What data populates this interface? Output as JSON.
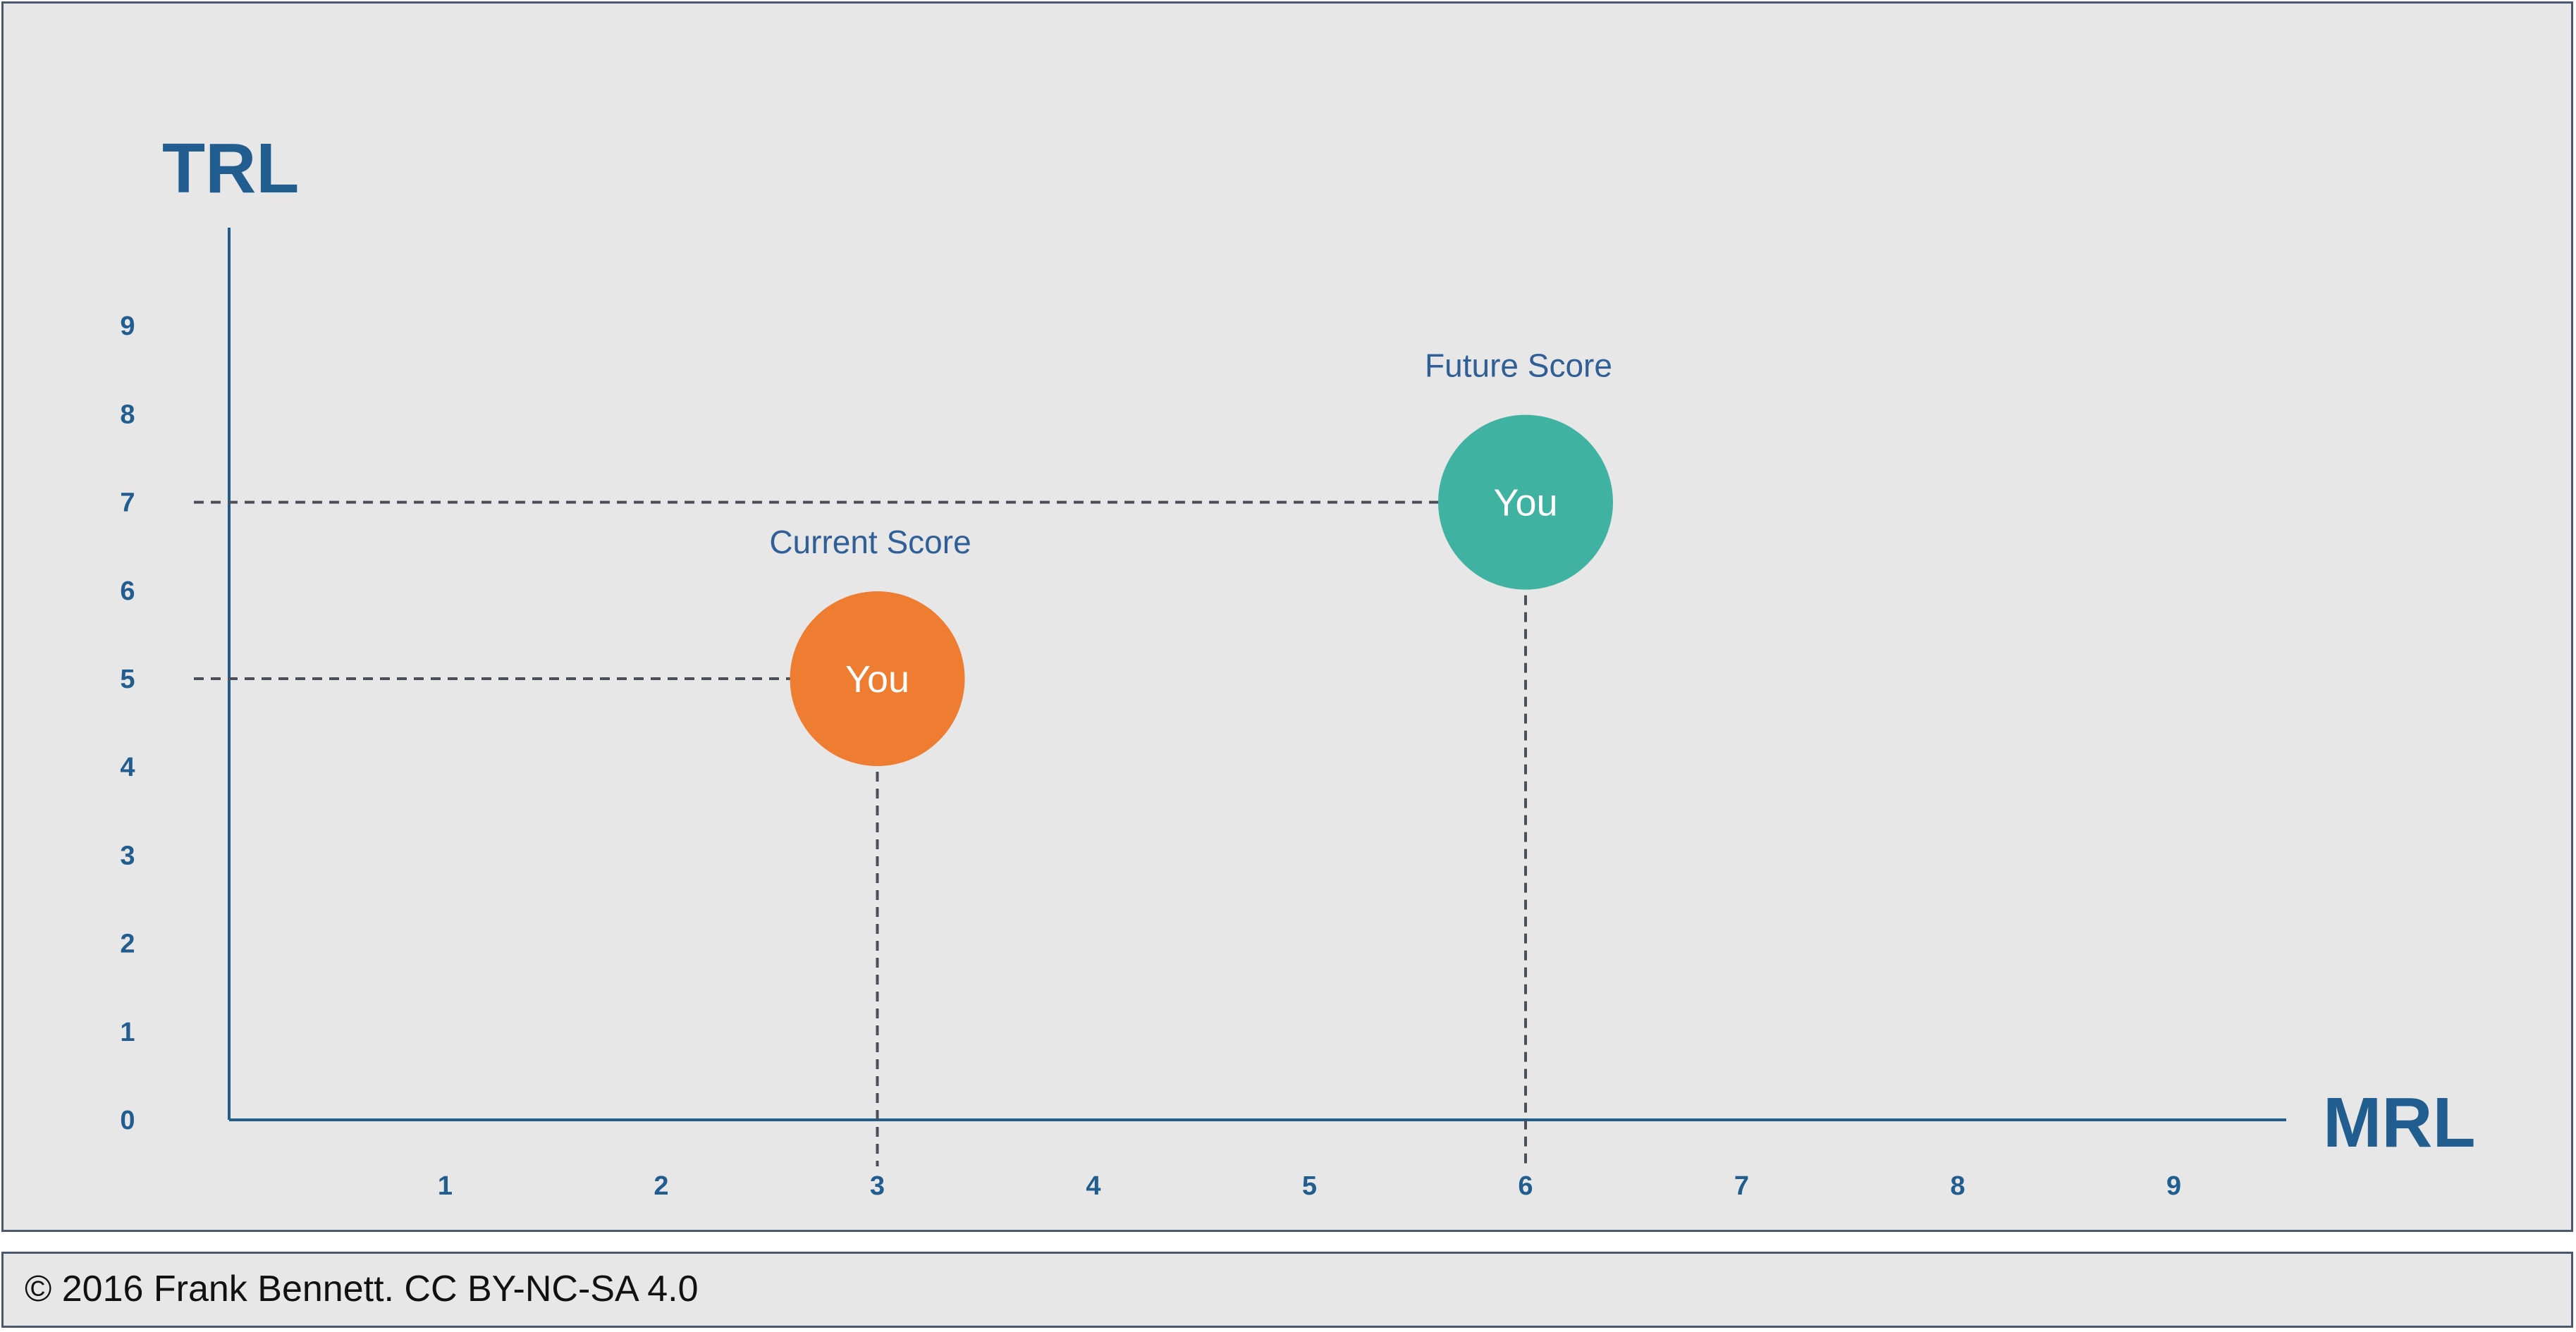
{
  "chart_data": {
    "type": "scatter",
    "xlabel": "MRL",
    "ylabel": "TRL",
    "x_ticks": [
      "1",
      "2",
      "3",
      "4",
      "5",
      "6",
      "7",
      "8",
      "9"
    ],
    "y_ticks": [
      "0",
      "1",
      "2",
      "3",
      "4",
      "5",
      "6",
      "7",
      "8",
      "9"
    ],
    "xlim": [
      0,
      9.5
    ],
    "ylim": [
      0,
      10
    ],
    "grid": false,
    "points": [
      {
        "caption": "Current Score",
        "marker_text": "You",
        "x": 3,
        "y": 5,
        "color": "#ee7d31"
      },
      {
        "caption": "Future Score",
        "marker_text": "You",
        "x": 6,
        "y": 7,
        "color": "#40b2a1"
      }
    ]
  },
  "colors": {
    "axis": "#215d8e",
    "background": "#e7e7e7",
    "border": "#4b5870",
    "dashed_guides": "#4a4f5a"
  },
  "footer": {
    "text": "© 2016 Frank Bennett. CC BY-NC-SA 4.0"
  }
}
